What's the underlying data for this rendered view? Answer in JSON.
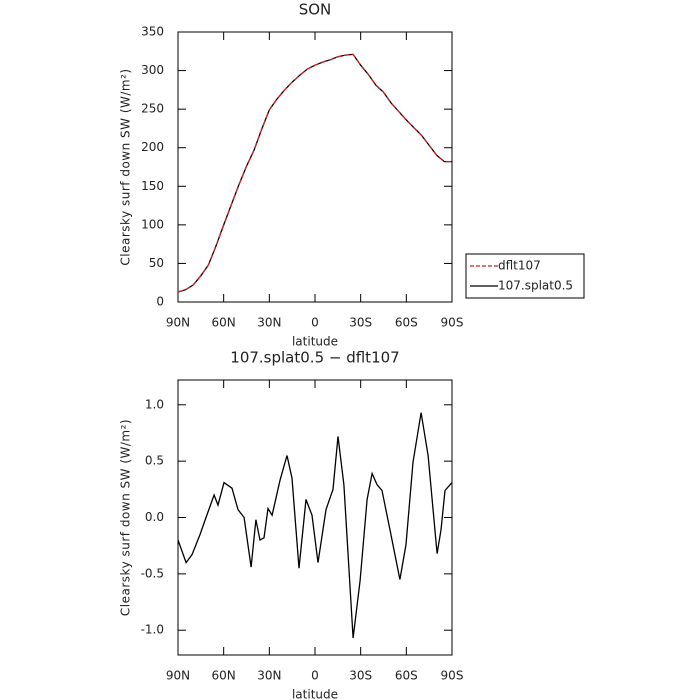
{
  "chart_data": [
    {
      "type": "line",
      "title": "SON",
      "xlabel": "latitude",
      "ylabel": "Clearsky surf down SW (W/m²)",
      "x": [
        90,
        85,
        80,
        75,
        70,
        65,
        60,
        55,
        50,
        45,
        40,
        35,
        30,
        25,
        20,
        15,
        10,
        5,
        0,
        -5,
        -10,
        -15,
        -20,
        -25,
        -30,
        -35,
        -40,
        -45,
        -50,
        -55,
        -60,
        -65,
        -70,
        -75,
        -80,
        -85,
        -90
      ],
      "series": [
        {
          "name": "dflt107",
          "color": "#cc2222",
          "linestyle": "dashed",
          "values": [
            13,
            16,
            22,
            34,
            48,
            73,
            100,
            126,
            152,
            176,
            197,
            224,
            249,
            263,
            275,
            285,
            294,
            302,
            307,
            311,
            314,
            318,
            320,
            321,
            307,
            295,
            281,
            272,
            258,
            247,
            236,
            226,
            216,
            203,
            190,
            182,
            182
          ]
        },
        {
          "name": "107.splat0.5",
          "color": "#000000",
          "linestyle": "solid",
          "values": [
            13,
            16,
            22,
            34,
            48,
            73,
            100,
            126,
            152,
            176,
            197,
            224,
            249,
            263,
            275,
            285,
            294,
            302,
            307,
            311,
            314,
            318,
            320,
            321,
            307,
            295,
            281,
            272,
            258,
            247,
            236,
            226,
            216,
            203,
            190,
            182,
            182
          ]
        }
      ],
      "xlim": [
        90,
        -90
      ],
      "xticks": [
        {
          "value": 90,
          "label": "90N"
        },
        {
          "value": 60,
          "label": "60N"
        },
        {
          "value": 30,
          "label": "30N"
        },
        0,
        {
          "value": -30,
          "label": "30S"
        },
        {
          "value": -60,
          "label": "60S"
        },
        {
          "value": -90,
          "label": "90S"
        }
      ],
      "ylim": [
        0,
        350
      ],
      "yticks": [
        0,
        50,
        100,
        150,
        200,
        250,
        300,
        350
      ],
      "legend": "right"
    },
    {
      "type": "line",
      "title": "107.splat0.5 − dflt107",
      "xlabel": "latitude",
      "ylabel": "Clearsky surf down SW (W/m²)",
      "x": [
        90,
        84.7,
        80.8,
        75.5,
        71.6,
        66.3,
        63.7,
        59.8,
        54.5,
        50.6,
        46.6,
        42,
        38.8,
        36.1,
        33.5,
        30.9,
        28.2,
        23,
        18.4,
        15.1,
        10.5,
        5.9,
        2,
        -2,
        -7.2,
        -11.8,
        -15.1,
        -19,
        -25,
        -29.6,
        -34.2,
        -37.5,
        -40.8,
        -44,
        -49.3,
        -55.8,
        -59.8,
        -64.4,
        -69.7,
        -74.3,
        -80.2,
        -82.8,
        -85.4,
        -90
      ],
      "values": [
        -0.2,
        -0.4,
        -0.33,
        -0.15,
        0.0,
        0.2,
        0.11,
        0.31,
        0.26,
        0.07,
        0.0,
        -0.44,
        -0.02,
        -0.2,
        -0.18,
        0.08,
        0.02,
        0.33,
        0.55,
        0.35,
        -0.45,
        0.16,
        0.02,
        -0.4,
        0.07,
        0.25,
        0.72,
        0.29,
        -1.07,
        -0.56,
        0.16,
        0.39,
        0.29,
        0.24,
        -0.11,
        -0.55,
        -0.24,
        0.49,
        0.93,
        0.55,
        -0.32,
        -0.11,
        0.24,
        0.31
      ],
      "color": "#000000",
      "xlim": [
        90,
        -90
      ],
      "xticks": [
        {
          "value": 90,
          "label": "90N"
        },
        {
          "value": 60,
          "label": "60N"
        },
        {
          "value": 30,
          "label": "30N"
        },
        0,
        {
          "value": -30,
          "label": "30S"
        },
        {
          "value": -60,
          "label": "60S"
        },
        {
          "value": -90,
          "label": "90S"
        }
      ],
      "ylim": [
        -1.22,
        1.22
      ],
      "yticks": [
        {
          "value": -1.0,
          "label": "-1.0"
        },
        -0.5,
        {
          "value": 0.0,
          "label": "0.0"
        },
        0.5,
        {
          "value": 1.0,
          "label": "1.0"
        }
      ]
    }
  ]
}
